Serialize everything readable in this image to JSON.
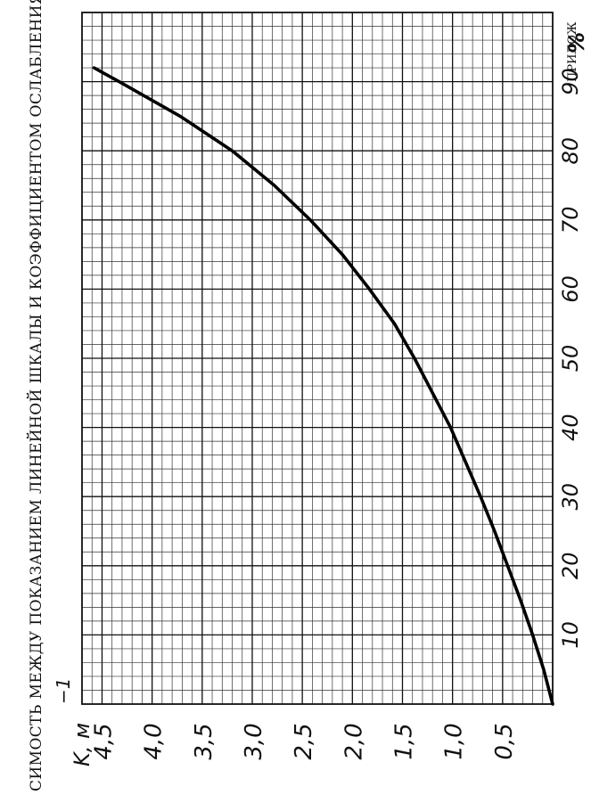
{
  "chart_data": {
    "type": "line",
    "title": "СИМОСТЬ МЕЖДУ ПОКАЗАНИЕМ ЛИНЕЙНОЙ ШКАЛЫ И КОЭФФИЦИЕНТОМ ОСЛАБЛЕНИЯ",
    "header": "ПРИЛОЖ",
    "xlabel": "%",
    "ylabel": "K, м",
    "ylabel_exp": "−1",
    "xlim": [
      0,
      100
    ],
    "ylim": [
      0,
      4.7
    ],
    "x_ticks": [
      10,
      20,
      30,
      40,
      50,
      60,
      70,
      80,
      90
    ],
    "x_tick_labels": [
      "10",
      "20",
      "30",
      "40",
      "50",
      "60",
      "70",
      "80",
      "90"
    ],
    "y_ticks": [
      0.5,
      1.0,
      1.5,
      2.0,
      2.5,
      3.0,
      3.5,
      4.0,
      4.5
    ],
    "y_tick_labels": [
      "0,5",
      "1,0",
      "1,5",
      "2,0",
      "2,5",
      "3,0",
      "3,5",
      "4,0",
      "4,5"
    ],
    "grid": true,
    "series": [
      {
        "x": [
          0,
          5,
          10,
          15,
          20,
          25,
          30,
          35,
          40,
          45,
          50,
          55,
          60,
          65,
          70,
          75,
          80,
          85,
          90,
          92
        ],
        "y": [
          0.0,
          0.09,
          0.2,
          0.32,
          0.45,
          0.58,
          0.72,
          0.87,
          1.02,
          1.2,
          1.38,
          1.58,
          1.83,
          2.1,
          2.42,
          2.78,
          3.2,
          3.72,
          4.33,
          4.58
        ]
      }
    ]
  }
}
